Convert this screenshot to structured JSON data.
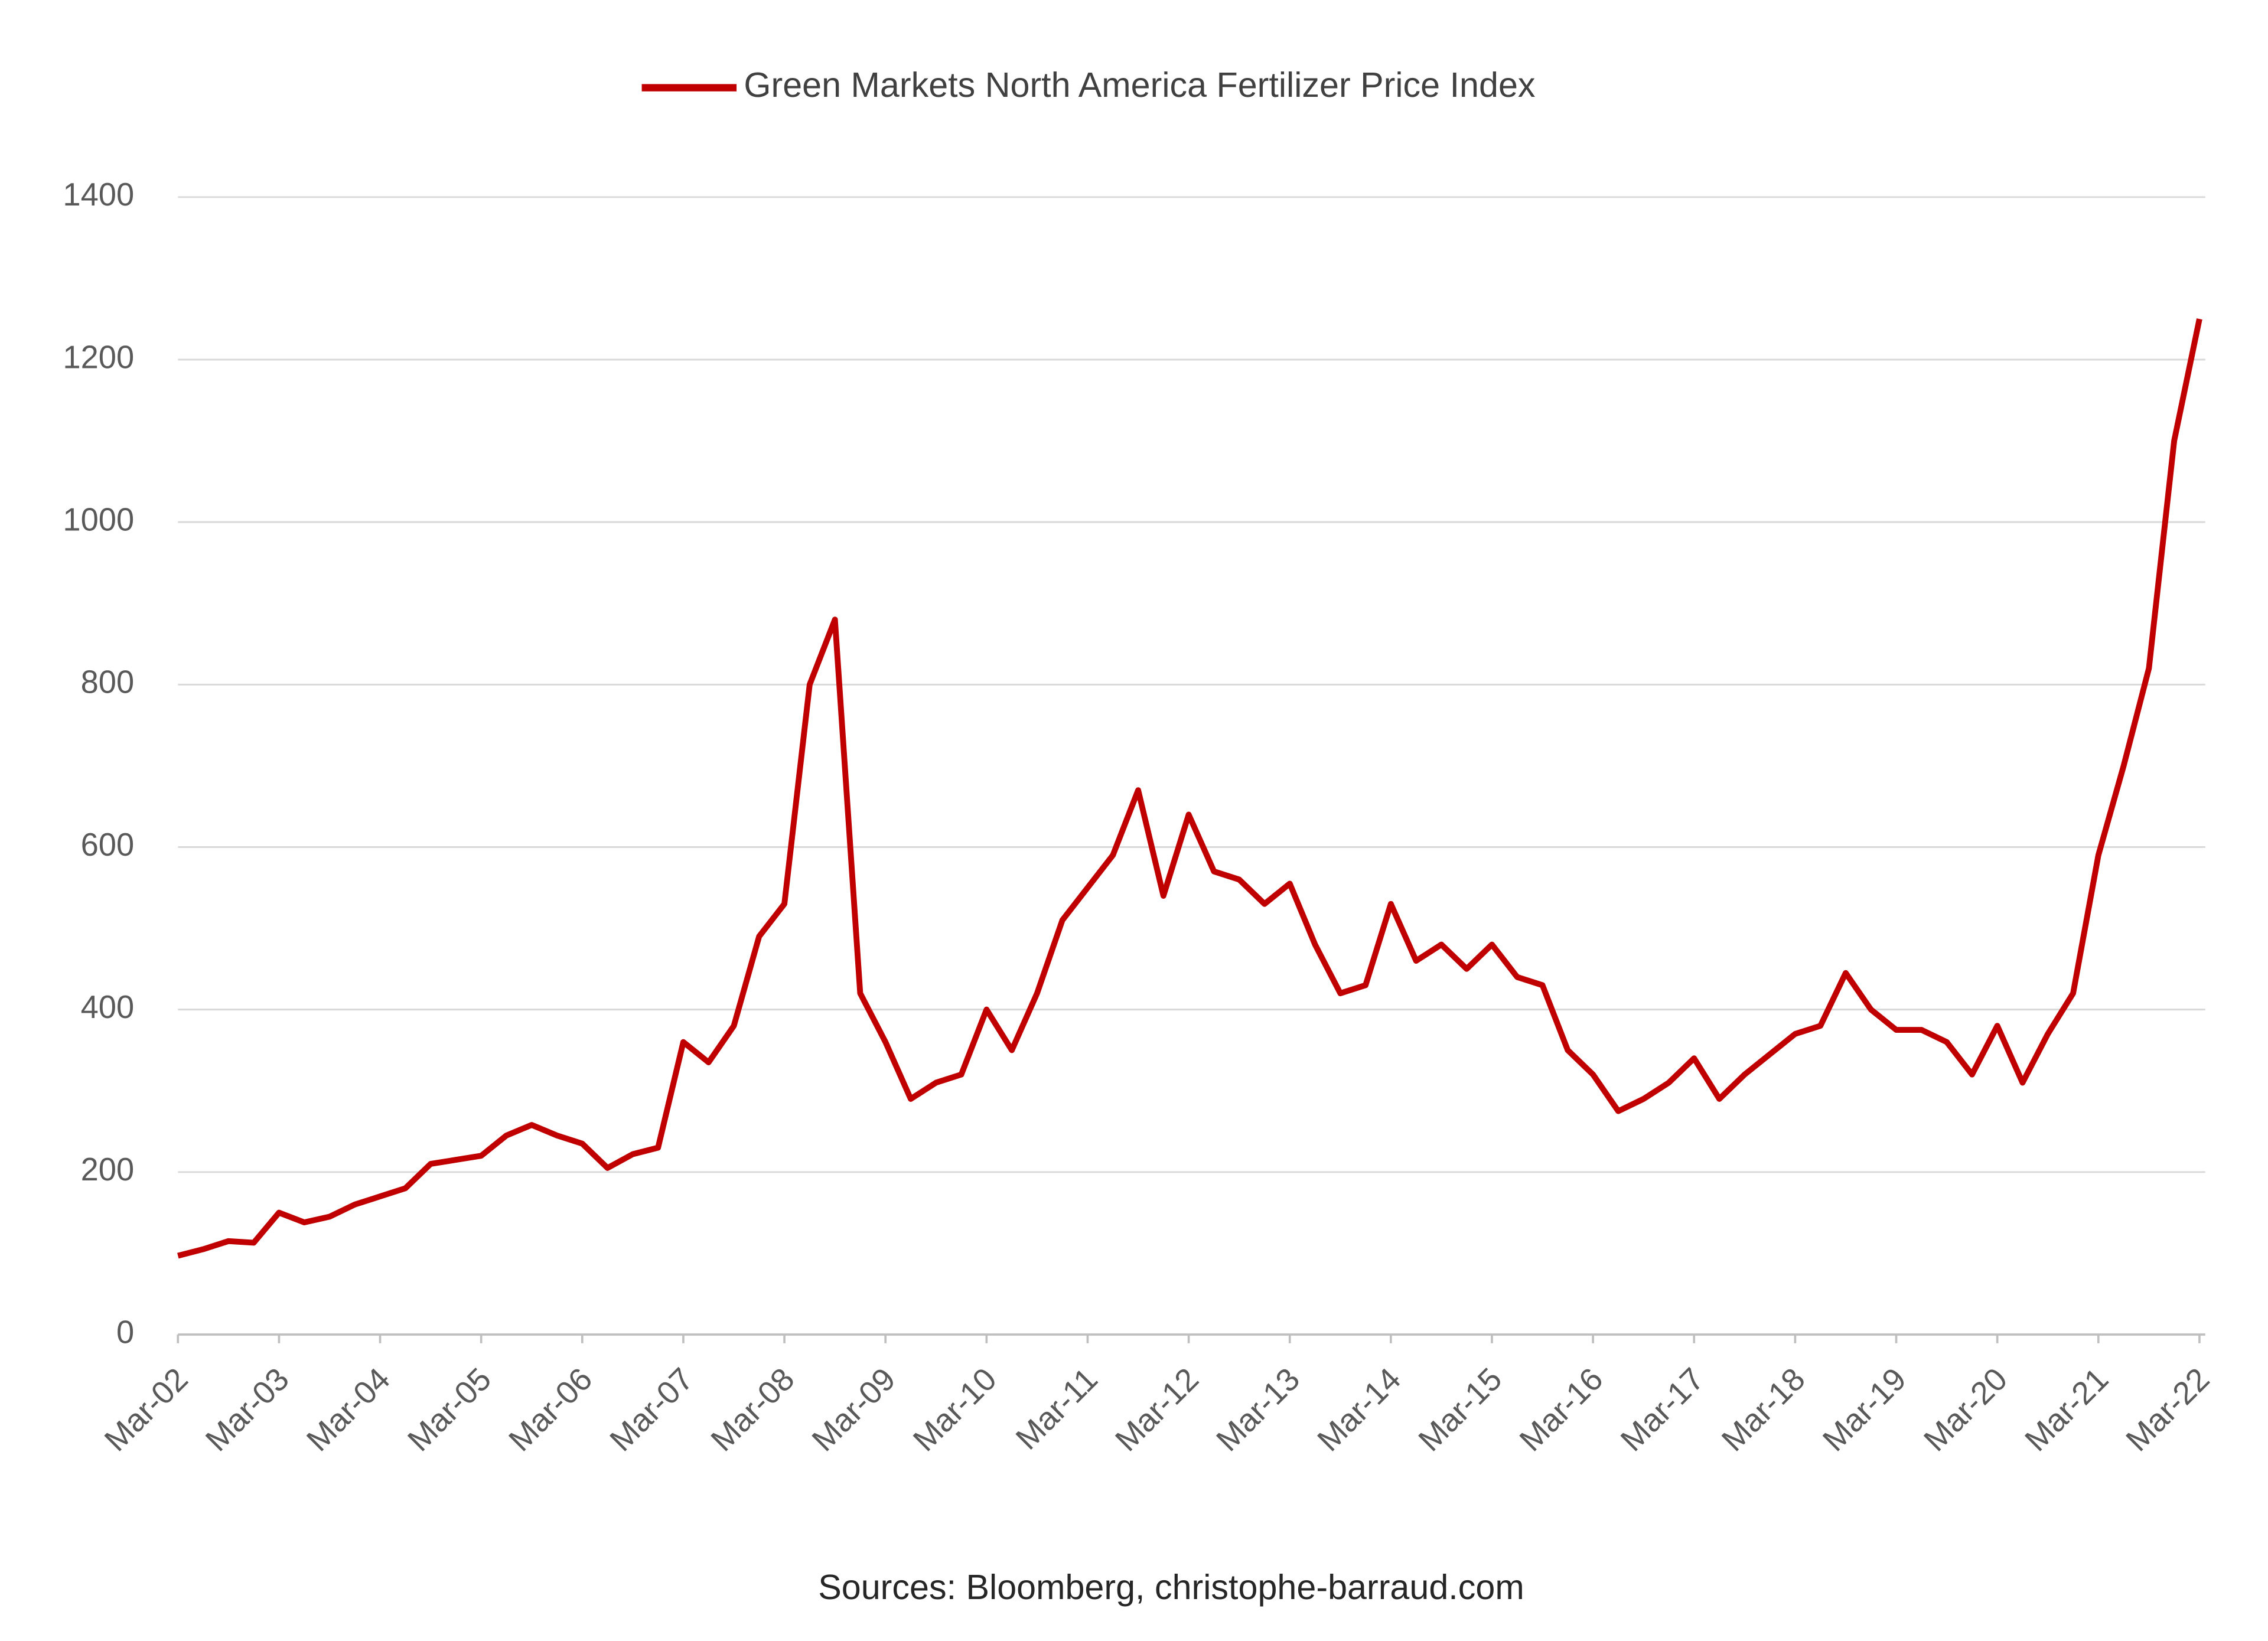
{
  "chart_data": {
    "type": "line",
    "source": "Sources: Bloomberg, christophe-barraud.com",
    "categories": [
      "Mar-02",
      null,
      null,
      null,
      "Mar-03",
      null,
      null,
      null,
      "Mar-04",
      null,
      null,
      null,
      "Mar-05",
      null,
      null,
      null,
      "Mar-06",
      null,
      null,
      null,
      "Mar-07",
      null,
      null,
      null,
      "Mar-08",
      null,
      null,
      null,
      "Mar-09",
      null,
      null,
      null,
      "Mar-10",
      null,
      null,
      null,
      "Mar-11",
      null,
      null,
      null,
      "Mar-12",
      null,
      null,
      null,
      "Mar-13",
      null,
      null,
      null,
      "Mar-14",
      null,
      null,
      null,
      "Mar-15",
      null,
      null,
      null,
      "Mar-16",
      null,
      null,
      null,
      "Mar-17",
      null,
      null,
      null,
      "Mar-18",
      null,
      null,
      null,
      "Mar-19",
      null,
      null,
      null,
      "Mar-20",
      null,
      null,
      null,
      "Mar-21",
      null,
      null,
      null,
      "Mar-22"
    ],
    "series": [
      {
        "name": "Green Markets North America Fertilizer Price Index",
        "color": "#c00000",
        "values": [
          97,
          105,
          115,
          113,
          150,
          138,
          145,
          160,
          170,
          180,
          210,
          215,
          220,
          245,
          258,
          245,
          235,
          205,
          222,
          230,
          360,
          335,
          380,
          490,
          530,
          800,
          880,
          420,
          360,
          290,
          310,
          320,
          400,
          350,
          420,
          510,
          550,
          590,
          670,
          540,
          640,
          570,
          560,
          530,
          555,
          480,
          420,
          430,
          530,
          460,
          480,
          450,
          480,
          440,
          430,
          350,
          320,
          275,
          290,
          310,
          340,
          290,
          320,
          345,
          370,
          380,
          445,
          400,
          375,
          375,
          360,
          320,
          380,
          310,
          370,
          420,
          590,
          700,
          820,
          1100,
          1250
        ]
      }
    ],
    "ylim": [
      0,
      1400
    ],
    "yticks": [
      0,
      200,
      400,
      600,
      800,
      1000,
      1200,
      1400
    ],
    "grid": true,
    "legend": "top"
  }
}
